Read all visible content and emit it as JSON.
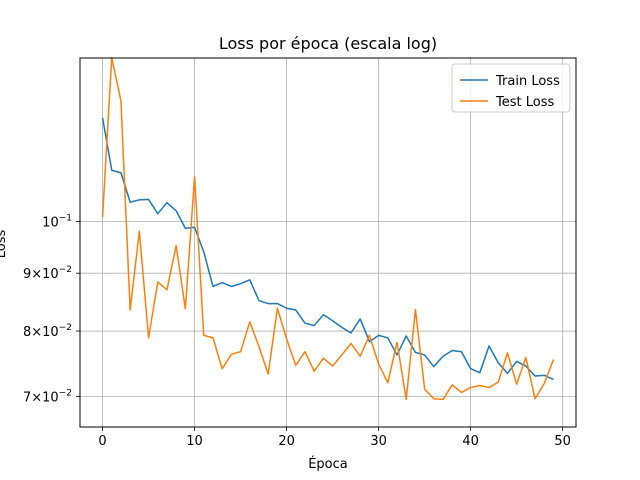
{
  "chart_data": {
    "type": "line",
    "title": "Loss por época (escala log)",
    "xlabel": "Época",
    "ylabel": "Loss",
    "yscale": "log",
    "grid": true,
    "legend_position": "top-right",
    "xlim": [
      -2.45,
      51.45
    ],
    "ylim": [
      0.0658,
      0.1395
    ],
    "xticks": [
      0,
      10,
      20,
      30,
      40,
      50
    ],
    "xtick_labels": [
      "0",
      "10",
      "20",
      "30",
      "40",
      "50"
    ],
    "yticks": [
      0.07,
      0.08,
      0.09,
      0.1
    ],
    "ytick_labels": [
      {
        "mantissa": "7",
        "times": "×",
        "base": "10",
        "exp": "−2"
      },
      {
        "mantissa": "8",
        "times": "×",
        "base": "10",
        "exp": "−2"
      },
      {
        "mantissa": "9",
        "times": "×",
        "base": "10",
        "exp": "−2"
      },
      {
        "mantissa": "",
        "times": "",
        "base": "10",
        "exp": "−1"
      }
    ],
    "x": [
      0,
      1,
      2,
      3,
      4,
      5,
      6,
      7,
      8,
      9,
      10,
      11,
      12,
      13,
      14,
      15,
      16,
      17,
      18,
      19,
      20,
      21,
      22,
      23,
      24,
      25,
      26,
      27,
      28,
      29,
      30,
      31,
      32,
      33,
      34,
      35,
      36,
      37,
      38,
      39,
      40,
      41,
      42,
      43,
      44,
      45,
      46,
      47,
      48,
      49
    ],
    "series": [
      {
        "name": "Train Loss",
        "color": "#1f77b4",
        "values": [
          0.1235,
          0.111,
          0.1104,
          0.104,
          0.1045,
          0.1046,
          0.1016,
          0.1039,
          0.1022,
          0.0986,
          0.0988,
          0.094,
          0.0876,
          0.0883,
          0.0876,
          0.0881,
          0.0888,
          0.0851,
          0.0846,
          0.0846,
          0.0838,
          0.0835,
          0.0813,
          0.0809,
          0.0827,
          0.0817,
          0.0806,
          0.0797,
          0.082,
          0.0783,
          0.0793,
          0.0789,
          0.0762,
          0.0792,
          0.0766,
          0.0762,
          0.0744,
          0.076,
          0.0769,
          0.0767,
          0.0741,
          0.0735,
          0.0776,
          0.075,
          0.0734,
          0.0752,
          0.0745,
          0.073,
          0.0731,
          0.0725
        ]
      },
      {
        "name": "Test Loss",
        "color": "#ff7f0e",
        "values": [
          0.1009,
          0.1396,
          0.1278,
          0.0835,
          0.098,
          0.0789,
          0.0884,
          0.087,
          0.0952,
          0.0837,
          0.1095,
          0.0793,
          0.0789,
          0.0741,
          0.0763,
          0.0767,
          0.0815,
          0.0775,
          0.0733,
          0.0838,
          0.0787,
          0.0746,
          0.0767,
          0.0737,
          0.0757,
          0.0745,
          0.0762,
          0.078,
          0.076,
          0.0793,
          0.0748,
          0.072,
          0.0782,
          0.0696,
          0.0836,
          0.0711,
          0.0697,
          0.0696,
          0.0717,
          0.0706,
          0.0713,
          0.0716,
          0.0713,
          0.0721,
          0.0765,
          0.0718,
          0.0758,
          0.0697,
          0.0719,
          0.0755
        ]
      }
    ]
  }
}
